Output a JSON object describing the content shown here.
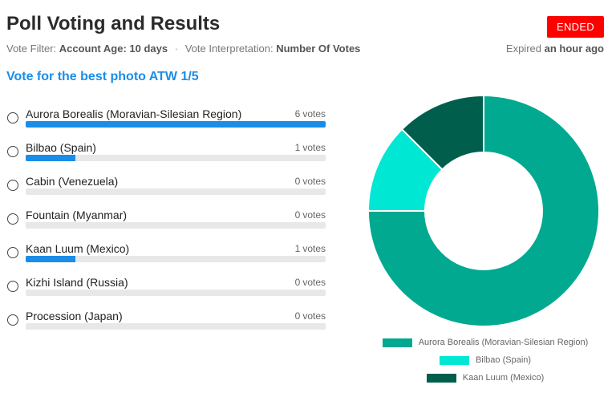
{
  "header": {
    "title": "Poll Voting and Results",
    "status": "ENDED",
    "filter_label": "Vote Filter:",
    "filter_value": "Account Age: 10 days",
    "interp_label": "Vote Interpretation:",
    "interp_value": "Number Of Votes",
    "expired_label": "Expired",
    "expired_value": "an hour ago"
  },
  "poll": {
    "question": "Vote for the best photo ATW 1/5",
    "votes_suffix": "votes",
    "options": [
      {
        "label": "Aurora Borealis (Moravian-Silesian Region)",
        "votes": 6
      },
      {
        "label": "Bilbao (Spain)",
        "votes": 1
      },
      {
        "label": "Cabin (Venezuela)",
        "votes": 0
      },
      {
        "label": "Fountain (Myanmar)",
        "votes": 0
      },
      {
        "label": "Kaan Luum (Mexico)",
        "votes": 1
      },
      {
        "label": "Kizhi Island (Russia)",
        "votes": 0
      },
      {
        "label": "Procession (Japan)",
        "votes": 0
      }
    ]
  },
  "chart_data": {
    "type": "pie",
    "categories": [
      "Aurora Borealis (Moravian-Silesian Region)",
      "Bilbao (Spain)",
      "Kaan Luum (Mexico)"
    ],
    "values": [
      6,
      1,
      1
    ],
    "colors": [
      "#00a98f",
      "#00e7d4",
      "#005e4d"
    ],
    "legend_position": "bottom"
  }
}
